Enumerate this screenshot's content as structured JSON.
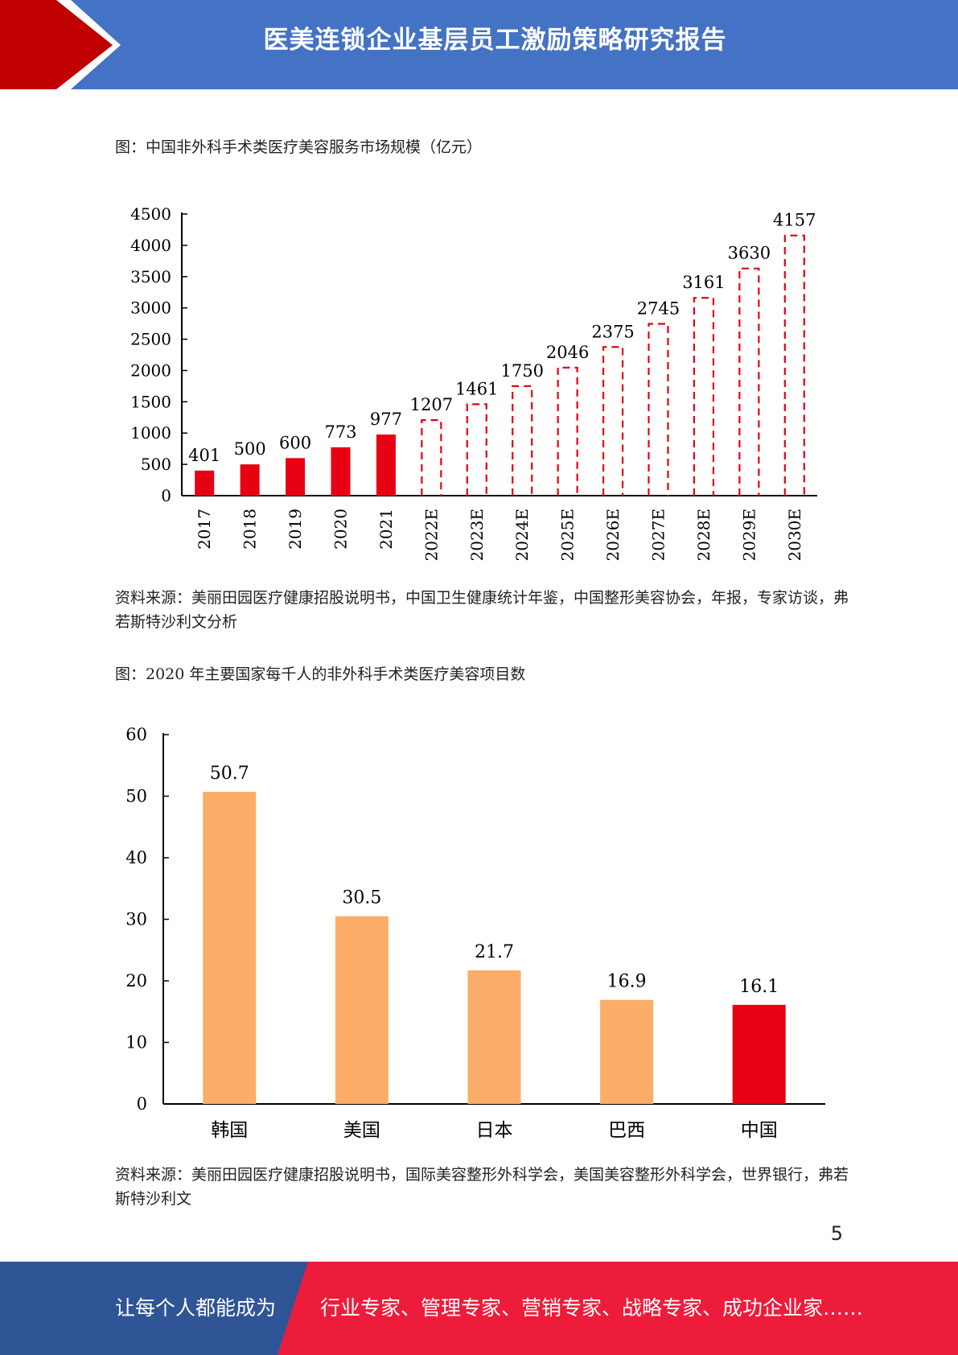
{
  "header": {
    "title": "医美连锁企业基层员工激励策略研究报告",
    "colors": {
      "blue": "#4472C4",
      "red": "#C00000"
    }
  },
  "figure1": {
    "caption": "图：中国非外科手术类医疗美容服务市场规模（亿元）",
    "source": "资料来源：美丽田园医疗健康招股说明书，中国卫生健康统计年鉴，中国整形美容协会，年报，专家访谈，弗若斯特沙利文分析"
  },
  "figure2": {
    "caption": "图：2020 年主要国家每千人的非外科手术类医疗美容项目数",
    "source": "资料来源：美丽田园医疗健康招股说明书，国际美容整形外科学会，美国美容整形外科学会，世界银行，弗若斯特沙利文"
  },
  "chart_data": [
    {
      "type": "bar",
      "title": "",
      "xlabel": "",
      "ylabel": "",
      "categories": [
        "2017",
        "2018",
        "2019",
        "2020",
        "2021",
        "2022E",
        "2023E",
        "2024E",
        "2025E",
        "2026E",
        "2027E",
        "2028E",
        "2029E",
        "2030E"
      ],
      "values": [
        401,
        500,
        600,
        773,
        977,
        1207,
        1461,
        1750,
        2046,
        2375,
        2745,
        3161,
        3630,
        4157
      ],
      "data_labels": [
        "401",
        "500",
        "600",
        "773",
        "977",
        "1207",
        "1461",
        "1750",
        "2046",
        "2375",
        "2745",
        "3161",
        "3630",
        "4157"
      ],
      "ylim": [
        0,
        4500
      ],
      "yticks": [
        "0",
        "500",
        "1000",
        "1500",
        "2000",
        "2500",
        "3000",
        "3500",
        "4000",
        "4500"
      ],
      "grid": false,
      "legend": "none",
      "style": {
        "actual_count": 5,
        "actual": "solid",
        "forecast": "dashed-outline"
      },
      "colors": {
        "bar": "#E60012"
      }
    },
    {
      "type": "bar",
      "title": "",
      "xlabel": "",
      "ylabel": "",
      "categories": [
        "韩国",
        "美国",
        "日本",
        "巴西",
        "中国"
      ],
      "values": [
        50.7,
        30.5,
        21.7,
        16.9,
        16.1
      ],
      "data_labels": [
        "50.7",
        "30.5",
        "21.7",
        "16.9",
        "16.1"
      ],
      "ylim": [
        0,
        60
      ],
      "yticks": [
        "0",
        "10",
        "20",
        "30",
        "40",
        "50",
        "60"
      ],
      "grid": false,
      "legend": "none",
      "colors": {
        "default": "#FBAC67",
        "highlight": "#E60012"
      },
      "highlight_index": 4
    }
  ],
  "page": {
    "number": "5"
  },
  "footer": {
    "left_text": "让每个人都能成为",
    "right_text": "行业专家、管理专家、营销专家、战略专家、成功企业家……",
    "colors": {
      "blue": "#2F5597",
      "red": "#EE1C3B"
    }
  }
}
